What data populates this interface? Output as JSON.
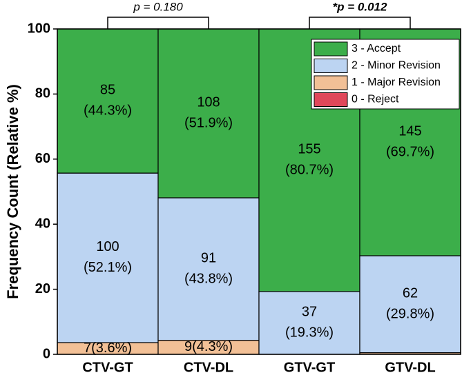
{
  "chart_data": {
    "type": "stacked_bar",
    "ylabel": "Frequency Count (Relative %)",
    "categories": [
      "CTV-GT",
      "CTV-DL",
      "GTV-GT",
      "GTV-DL"
    ],
    "series": [
      {
        "name": "0 - Reject",
        "color": "#e0475a",
        "values": [
          0,
          0,
          0,
          0
        ],
        "value_labels": [
          null,
          null,
          null,
          null
        ]
      },
      {
        "name": "1 - Major Revision",
        "color": "#f2c096",
        "values": [
          3.6,
          4.3,
          0,
          0.5
        ],
        "value_labels": [
          "7(3.6%)",
          "9(4.3%)",
          null,
          null
        ]
      },
      {
        "name": "2 - Minor Revision",
        "color": "#bcd4f2",
        "values": [
          52.1,
          43.8,
          19.3,
          29.8
        ],
        "value_labels": [
          "100\n(52.1%)",
          "91\n(43.8%)",
          "37\n(19.3%)",
          "62\n(29.8%)"
        ]
      },
      {
        "name": "3 - Accept",
        "color": "#3cae4a",
        "values": [
          44.3,
          51.9,
          80.7,
          69.7
        ],
        "value_labels": [
          "85\n(44.3%)",
          "108\n(51.9%)",
          "155\n(80.7%)",
          "145\n(69.7%)"
        ]
      }
    ],
    "ylim": [
      0,
      100
    ],
    "yticks": [
      0,
      20,
      40,
      60,
      80,
      100
    ],
    "legend": "upper right",
    "annotations": [
      {
        "text": "p = 0.180",
        "between": [
          "CTV-GT",
          "CTV-DL"
        ],
        "style": "normal"
      },
      {
        "text": "*p = 0.012",
        "between": [
          "GTV-GT",
          "GTV-DL"
        ],
        "style": "bold"
      }
    ]
  }
}
